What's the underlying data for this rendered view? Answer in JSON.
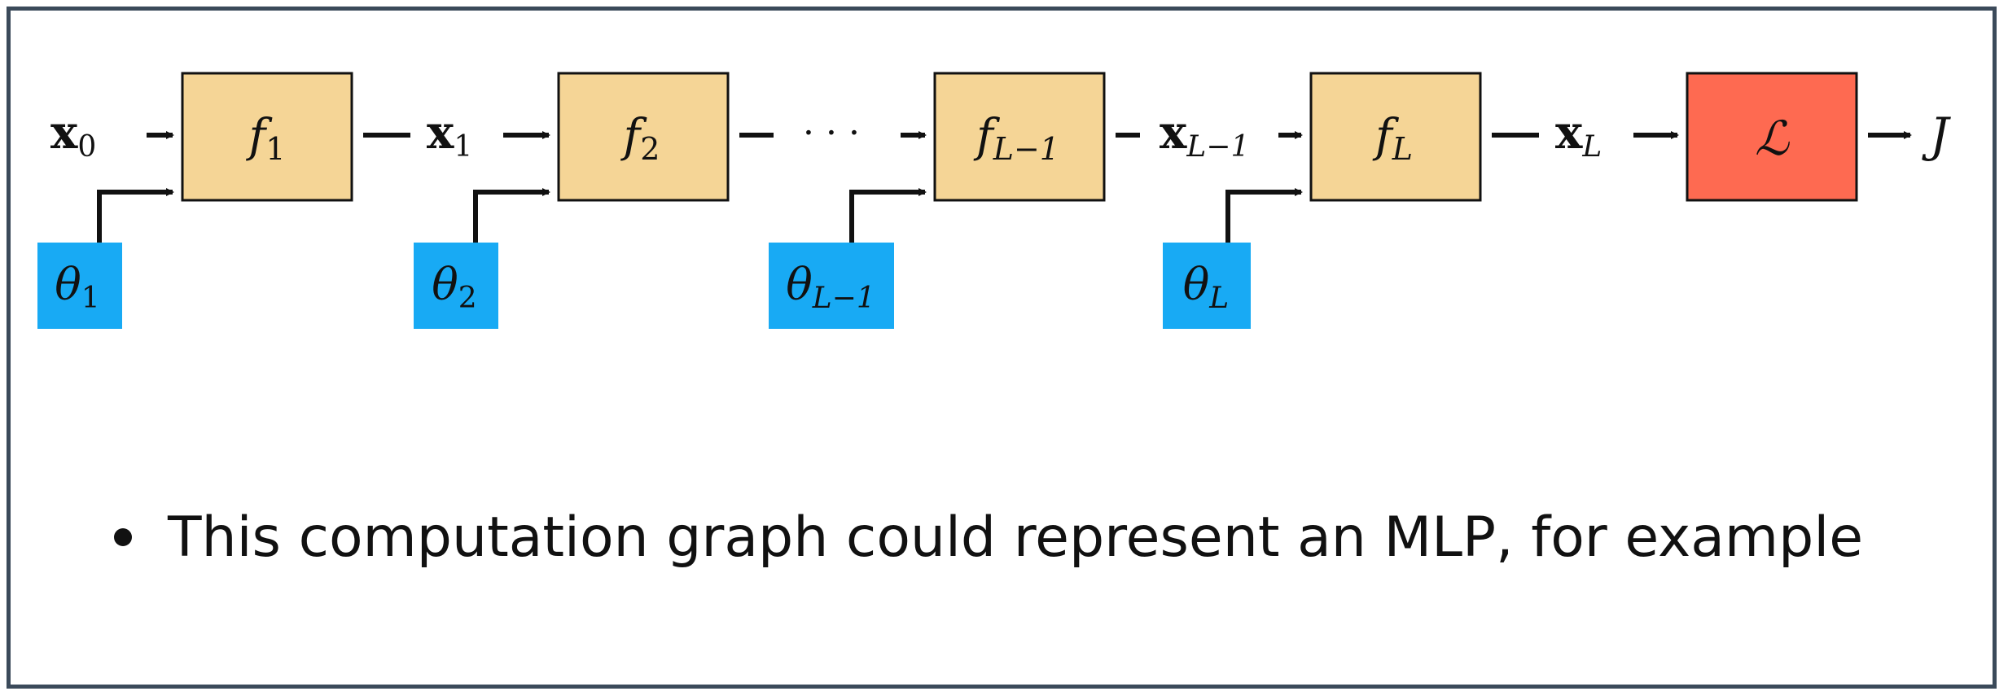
{
  "colors": {
    "function_box": "#f5d596",
    "loss_box": "#fe6a51",
    "param_box": "#18aaf4",
    "stroke": "#111111",
    "frame_border": "#3b4a5a"
  },
  "diagram": {
    "inputs": {
      "x0": {
        "base": "x",
        "sub": "0"
      },
      "x1": {
        "base": "x",
        "sub": "1"
      },
      "xLm1": {
        "base": "x",
        "sub": "L−1"
      },
      "xL": {
        "base": "x",
        "sub": "L"
      }
    },
    "ellipsis": "· · ·",
    "functions": [
      {
        "base": "f",
        "sub": "1"
      },
      {
        "base": "f",
        "sub": "2"
      },
      {
        "base": "f",
        "sub": "L−1"
      },
      {
        "base": "f",
        "sub": "L"
      }
    ],
    "params": [
      {
        "base": "θ",
        "sub": "1"
      },
      {
        "base": "θ",
        "sub": "2"
      },
      {
        "base": "θ",
        "sub": "L−1"
      },
      {
        "base": "θ",
        "sub": "L"
      }
    ],
    "loss": {
      "label": "ℒ"
    },
    "output": {
      "label": "J"
    }
  },
  "bullets": [
    "This computation graph could represent an MLP, for example"
  ]
}
